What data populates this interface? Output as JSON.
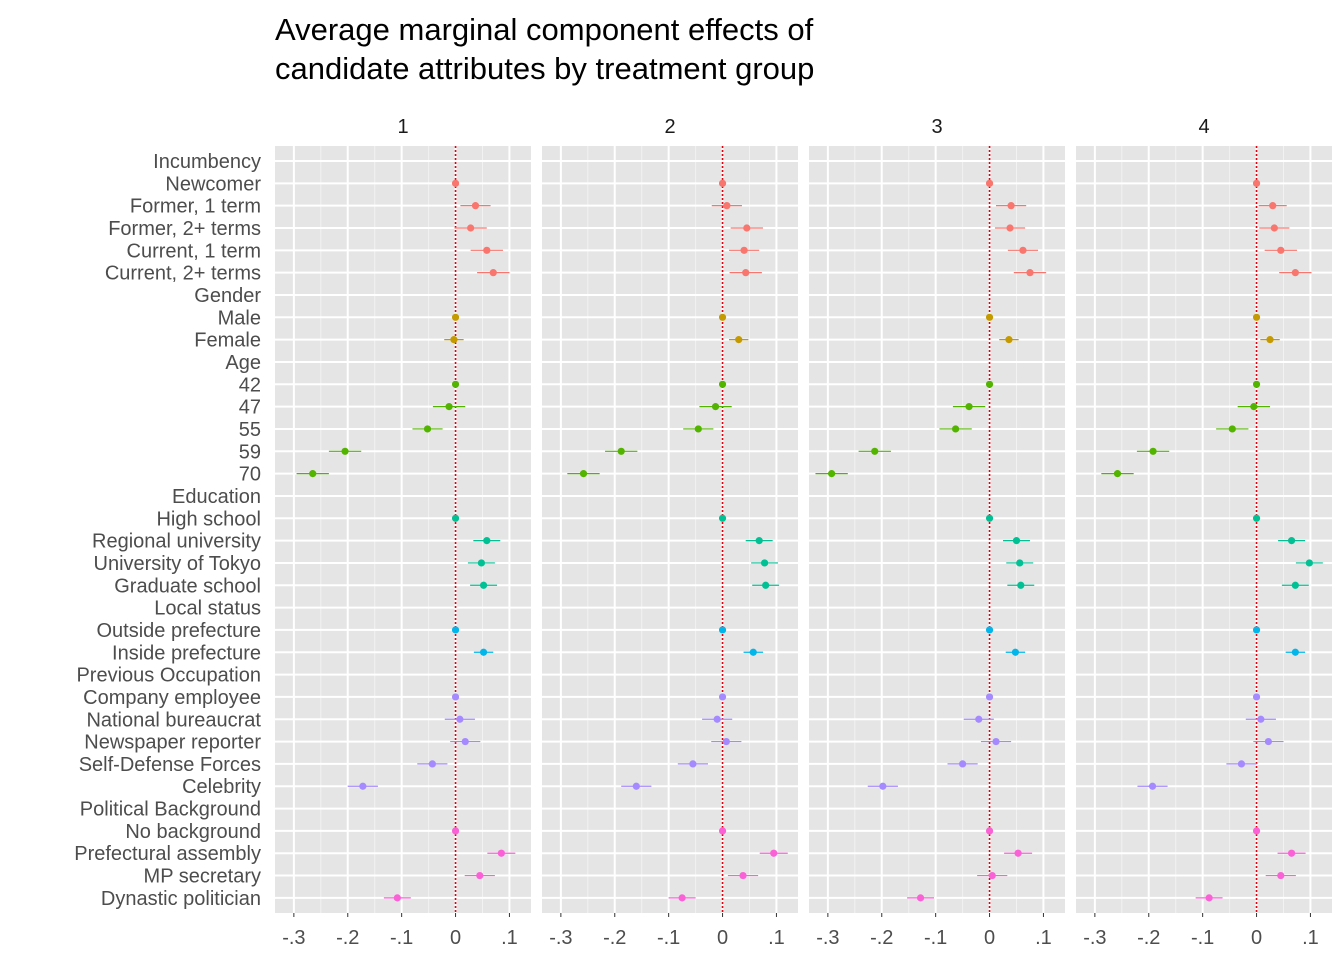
{
  "chart_data": {
    "type": "scatter",
    "title": [
      "Average marginal component effects of",
      "candidate attributes by treatment group"
    ],
    "panels": [
      "1",
      "2",
      "3",
      "4"
    ],
    "x_ticks": [
      -0.3,
      -0.2,
      -0.1,
      0,
      0.1
    ],
    "x_tick_labels": [
      "-.3",
      "-.2",
      "-.1",
      "0",
      ".1"
    ],
    "xlim": [
      -0.335,
      0.14
    ],
    "reference_line": 0,
    "grid": true,
    "y_categories": [
      "Incumbency",
      "Newcomer",
      "Former, 1 term",
      "Former, 2+ terms",
      "Current, 1 term",
      "Current, 2+ terms",
      "Gender",
      "Male",
      "Female",
      "Age",
      "42",
      "47",
      "55",
      "59",
      "70",
      "Education",
      "High school",
      "Regional university",
      "University of Tokyo",
      "Graduate school",
      "Local status",
      "Outside prefecture",
      "Inside prefecture",
      "Previous Occupation",
      "Company employee",
      "National bureaucrat",
      "Newspaper reporter",
      "Self-Defense Forces",
      "Celebrity",
      "Political Background",
      "No background",
      "Prefectural assembly",
      "MP secretary",
      "Dynastic politician"
    ],
    "series": [
      {
        "name": "Incumbency",
        "color": "#F8766D",
        "levels": [
          "Newcomer",
          "Former, 1 term",
          "Former, 2+ terms",
          "Current, 1 term",
          "Current, 2+ terms"
        ],
        "estimates": [
          [
            0,
            0.037,
            0.028,
            0.058,
            0.07
          ],
          [
            0,
            0.008,
            0.045,
            0.04,
            0.043
          ],
          [
            0,
            0.04,
            0.038,
            0.062,
            0.075
          ],
          [
            0,
            0.03,
            0.033,
            0.045,
            0.072
          ]
        ],
        "half_width": [
          [
            0,
            0.028,
            0.03,
            0.03,
            0.03
          ],
          [
            0,
            0.028,
            0.03,
            0.028,
            0.03
          ],
          [
            0,
            0.028,
            0.028,
            0.028,
            0.03
          ],
          [
            0,
            0.026,
            0.028,
            0.03,
            0.03
          ]
        ]
      },
      {
        "name": "Gender",
        "color": "#C49A00",
        "levels": [
          "Male",
          "Female"
        ],
        "estimates": [
          [
            0,
            -0.003
          ],
          [
            0,
            0.03
          ],
          [
            0,
            0.036
          ],
          [
            0,
            0.025
          ]
        ],
        "half_width": [
          [
            0,
            0.018
          ],
          [
            0,
            0.018
          ],
          [
            0,
            0.018
          ],
          [
            0,
            0.018
          ]
        ]
      },
      {
        "name": "Age",
        "color": "#53B400",
        "levels": [
          "42",
          "47",
          "55",
          "59",
          "70"
        ],
        "estimates": [
          [
            0,
            -0.012,
            -0.052,
            -0.205,
            -0.265
          ],
          [
            0,
            -0.013,
            -0.045,
            -0.188,
            -0.258
          ],
          [
            0,
            -0.038,
            -0.063,
            -0.213,
            -0.293
          ],
          [
            0,
            -0.005,
            -0.045,
            -0.192,
            -0.258
          ]
        ],
        "half_width": [
          [
            0,
            0.03,
            0.028,
            0.03,
            0.03
          ],
          [
            0,
            0.03,
            0.028,
            0.03,
            0.03
          ],
          [
            0,
            0.03,
            0.03,
            0.03,
            0.03
          ],
          [
            0,
            0.03,
            0.03,
            0.03,
            0.03
          ]
        ]
      },
      {
        "name": "Education",
        "color": "#00C094",
        "levels": [
          "High school",
          "Regional university",
          "University of Tokyo",
          "Graduate school"
        ],
        "estimates": [
          [
            0,
            0.058,
            0.048,
            0.052
          ],
          [
            0,
            0.068,
            0.078,
            0.08
          ],
          [
            0,
            0.05,
            0.056,
            0.058
          ],
          [
            0,
            0.065,
            0.098,
            0.072
          ]
        ],
        "half_width": [
          [
            0,
            0.025,
            0.025,
            0.025
          ],
          [
            0,
            0.025,
            0.025,
            0.025
          ],
          [
            0,
            0.025,
            0.025,
            0.025
          ],
          [
            0,
            0.025,
            0.025,
            0.025
          ]
        ]
      },
      {
        "name": "Local status",
        "color": "#00B6EB",
        "levels": [
          "Outside prefecture",
          "Inside prefecture"
        ],
        "estimates": [
          [
            0,
            0.052
          ],
          [
            0,
            0.057
          ],
          [
            0,
            0.048
          ],
          [
            0,
            0.072
          ]
        ],
        "half_width": [
          [
            0,
            0.018
          ],
          [
            0,
            0.018
          ],
          [
            0,
            0.018
          ],
          [
            0,
            0.018
          ]
        ]
      },
      {
        "name": "Previous Occupation",
        "color": "#A58AFF",
        "levels": [
          "Company employee",
          "National bureaucrat",
          "Newspaper reporter",
          "Self-Defense Forces",
          "Celebrity"
        ],
        "estimates": [
          [
            0,
            0.008,
            0.018,
            -0.043,
            -0.172
          ],
          [
            0,
            -0.01,
            0.007,
            -0.055,
            -0.16
          ],
          [
            0,
            -0.02,
            0.012,
            -0.05,
            -0.198
          ],
          [
            0,
            0.008,
            0.022,
            -0.028,
            -0.193
          ]
        ],
        "half_width": [
          [
            0,
            0.028,
            0.028,
            0.028,
            0.028
          ],
          [
            0,
            0.028,
            0.028,
            0.028,
            0.028
          ],
          [
            0,
            0.028,
            0.028,
            0.028,
            0.028
          ],
          [
            0,
            0.028,
            0.028,
            0.028,
            0.028
          ]
        ]
      },
      {
        "name": "Political Background",
        "color": "#FB61D7",
        "levels": [
          "No background",
          "Prefectural assembly",
          "MP secretary",
          "Dynastic politician"
        ],
        "estimates": [
          [
            0,
            0.085,
            0.045,
            -0.108
          ],
          [
            0,
            0.095,
            0.038,
            -0.075
          ],
          [
            0,
            0.053,
            0.005,
            -0.128
          ],
          [
            0,
            0.065,
            0.045,
            -0.088
          ]
        ],
        "half_width": [
          [
            0,
            0.026,
            0.028,
            0.025
          ],
          [
            0,
            0.026,
            0.028,
            0.025
          ],
          [
            0,
            0.026,
            0.028,
            0.025
          ],
          [
            0,
            0.026,
            0.028,
            0.025
          ]
        ]
      }
    ]
  }
}
